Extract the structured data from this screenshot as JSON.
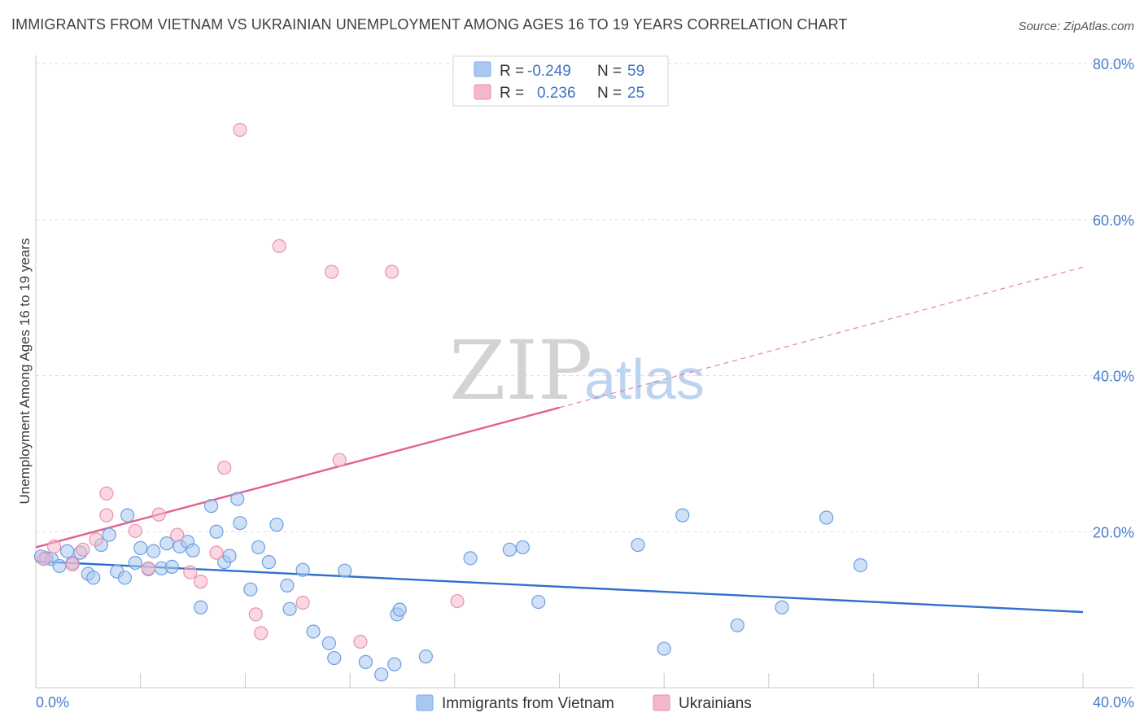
{
  "title": "IMMIGRANTS FROM VIETNAM VS UKRAINIAN UNEMPLOYMENT AMONG AGES 16 TO 19 YEARS CORRELATION CHART",
  "source": "Source: ZipAtlas.com",
  "watermark": {
    "zip": "ZIP",
    "atlas": "atlas"
  },
  "legend": {
    "rows": [
      {
        "r_label": "R =",
        "r_value": "-0.249",
        "n_label": "N =",
        "n_value": "59",
        "color": "#a9c8f0"
      },
      {
        "r_label": "R =",
        "r_value": "0.236",
        "n_label": "N =",
        "n_value": "25",
        "color": "#f5b8cb"
      }
    ]
  },
  "bottom_legend": [
    {
      "label": "Immigrants from Vietnam",
      "color": "#a9c8f0"
    },
    {
      "label": "Ukrainians",
      "color": "#f5b8cb"
    }
  ],
  "chart_data": {
    "type": "scatter",
    "title": "IMMIGRANTS FROM VIETNAM VS UKRAINIAN UNEMPLOYMENT AMONG AGES 16 TO 19 YEARS CORRELATION CHART",
    "xlabel": "",
    "ylabel": "Unemployment Among Ages 16 to 19 years",
    "xlim": [
      0,
      40
    ],
    "ylim": [
      0,
      80
    ],
    "x_tick_labels": [
      "0.0%",
      "40.0%"
    ],
    "y_tick_labels": [
      "20.0%",
      "40.0%",
      "60.0%",
      "80.0%"
    ],
    "y_ticks": [
      20,
      40,
      60,
      80
    ],
    "grid": true,
    "legend_position": "top-center",
    "series": [
      {
        "name": "Immigrants from Vietnam",
        "color": "#a9c8f0",
        "stroke": "#6f9ee0",
        "trend": {
          "x": [
            0,
            40
          ],
          "y": [
            16.2,
            9.7
          ],
          "color": "#2f6fcf"
        },
        "points": [
          [
            0.2,
            16.8
          ],
          [
            0.4,
            16.6
          ],
          [
            0.6,
            16.5
          ],
          [
            0.9,
            15.6
          ],
          [
            1.2,
            17.5
          ],
          [
            1.4,
            16.0
          ],
          [
            1.7,
            17.3
          ],
          [
            2.0,
            14.6
          ],
          [
            2.2,
            14.1
          ],
          [
            2.5,
            18.3
          ],
          [
            2.8,
            19.6
          ],
          [
            3.1,
            14.9
          ],
          [
            3.4,
            14.1
          ],
          [
            3.5,
            22.1
          ],
          [
            3.8,
            16.0
          ],
          [
            4.0,
            17.9
          ],
          [
            4.3,
            15.2
          ],
          [
            4.5,
            17.5
          ],
          [
            4.8,
            15.3
          ],
          [
            5.0,
            18.5
          ],
          [
            5.2,
            15.5
          ],
          [
            5.5,
            18.1
          ],
          [
            5.8,
            18.7
          ],
          [
            6.0,
            17.6
          ],
          [
            6.3,
            10.3
          ],
          [
            6.7,
            23.3
          ],
          [
            6.9,
            20.0
          ],
          [
            7.2,
            16.1
          ],
          [
            7.4,
            16.9
          ],
          [
            7.7,
            24.2
          ],
          [
            7.8,
            21.1
          ],
          [
            8.2,
            12.6
          ],
          [
            8.5,
            18.0
          ],
          [
            8.9,
            16.1
          ],
          [
            9.2,
            20.9
          ],
          [
            9.6,
            13.1
          ],
          [
            9.7,
            10.1
          ],
          [
            10.2,
            15.1
          ],
          [
            10.6,
            7.2
          ],
          [
            11.2,
            5.7
          ],
          [
            11.4,
            3.8
          ],
          [
            11.8,
            15.0
          ],
          [
            12.6,
            3.3
          ],
          [
            13.2,
            1.7
          ],
          [
            13.7,
            3.0
          ],
          [
            13.8,
            9.4
          ],
          [
            13.9,
            10.0
          ],
          [
            14.9,
            4.0
          ],
          [
            16.6,
            16.6
          ],
          [
            18.1,
            17.7
          ],
          [
            18.6,
            18.0
          ],
          [
            19.2,
            11.0
          ],
          [
            23.0,
            18.3
          ],
          [
            24.0,
            5.0
          ],
          [
            24.7,
            22.1
          ],
          [
            26.8,
            8.0
          ],
          [
            28.5,
            10.3
          ],
          [
            30.2,
            21.8
          ],
          [
            31.5,
            15.7
          ]
        ]
      },
      {
        "name": "Ukrainians",
        "color": "#f5b8cb",
        "stroke": "#e892ad",
        "trend": {
          "x": [
            0,
            20
          ],
          "y": [
            18.0,
            35.9
          ],
          "dashed_to": [
            40,
            53.9
          ],
          "color": "#e0628e"
        },
        "points": [
          [
            0.3,
            16.5
          ],
          [
            0.7,
            18.1
          ],
          [
            1.4,
            15.8
          ],
          [
            1.8,
            17.7
          ],
          [
            2.3,
            19.0
          ],
          [
            2.7,
            24.9
          ],
          [
            2.7,
            22.1
          ],
          [
            3.8,
            20.1
          ],
          [
            4.3,
            15.3
          ],
          [
            4.7,
            22.2
          ],
          [
            5.4,
            19.6
          ],
          [
            5.9,
            14.8
          ],
          [
            6.3,
            13.6
          ],
          [
            6.9,
            17.3
          ],
          [
            7.2,
            28.2
          ],
          [
            7.8,
            71.5
          ],
          [
            8.4,
            9.4
          ],
          [
            8.6,
            7.0
          ],
          [
            9.3,
            56.6
          ],
          [
            10.2,
            10.9
          ],
          [
            11.3,
            53.3
          ],
          [
            11.6,
            29.2
          ],
          [
            12.4,
            5.9
          ],
          [
            13.6,
            53.3
          ],
          [
            16.1,
            11.1
          ]
        ]
      }
    ]
  }
}
